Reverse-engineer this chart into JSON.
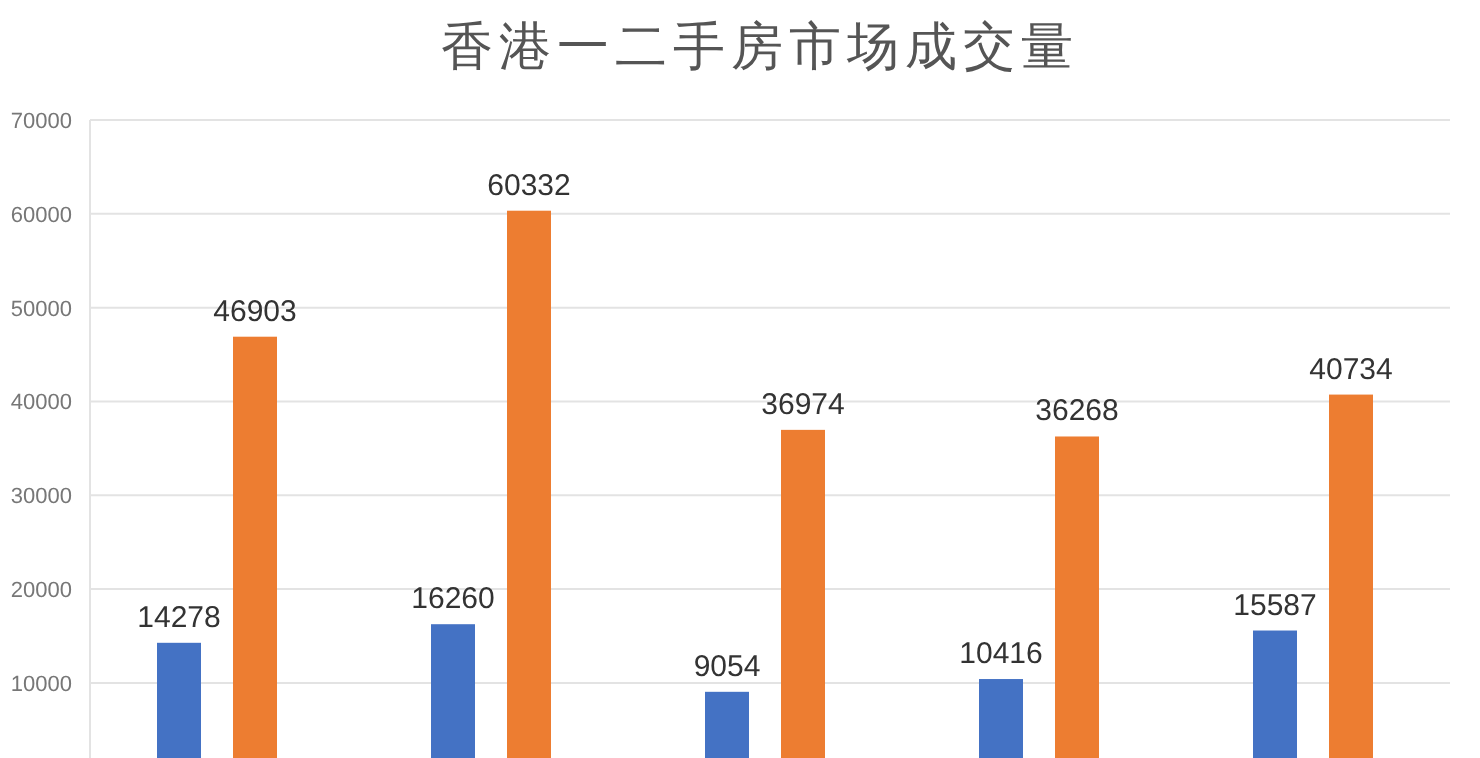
{
  "chart_data": {
    "type": "bar",
    "title": "香港一二手房市场成交量",
    "categories": [
      null,
      null,
      null,
      null,
      null
    ],
    "series": [
      {
        "color": "#4472c4",
        "values": [
          14278,
          16260,
          9054,
          10416,
          15587
        ]
      },
      {
        "color": "#ed7d31",
        "values": [
          46903,
          60332,
          36974,
          36268,
          40734
        ]
      }
    ],
    "ylim": [
      2000,
      70000
    ],
    "yticks": [
      10000,
      20000,
      30000,
      40000,
      50000,
      60000,
      70000
    ],
    "grid": "y",
    "data_labels": true
  }
}
